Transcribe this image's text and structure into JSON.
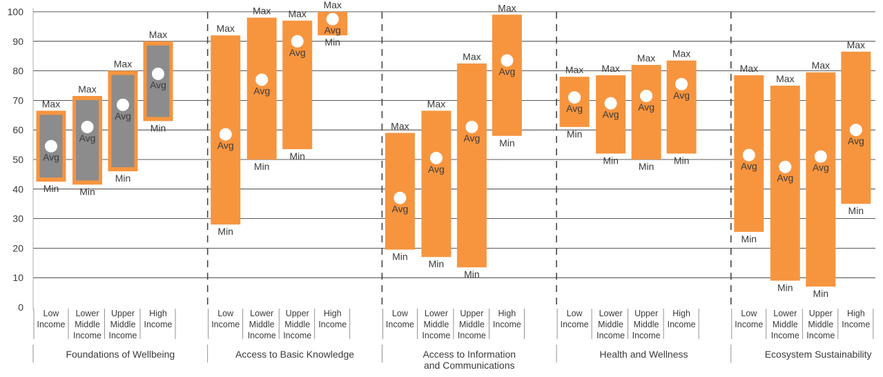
{
  "chart_data": {
    "type": "range-bar",
    "ylim": [
      0,
      100
    ],
    "yticks": [
      0,
      10,
      20,
      30,
      40,
      50,
      60,
      70,
      80,
      90,
      100
    ],
    "grid": true,
    "labels": {
      "max": "Max",
      "avg": "Avg",
      "min": "Min"
    },
    "colors": {
      "bar": "#F7953F",
      "inner": "#8C8C8C",
      "grid": "#222222",
      "text": "#3a3a3a"
    },
    "categories": [
      [
        "Low",
        "Income"
      ],
      [
        "Lower",
        "Middle",
        "Income"
      ],
      [
        "Upper",
        "Middle",
        "Income"
      ],
      [
        "High",
        "Income"
      ]
    ],
    "groups": [
      {
        "label": [
          "Foundations of Wellbeing"
        ],
        "inner": {
          "min": 46,
          "max": 63
        },
        "bars": [
          {
            "min": 42.5,
            "max": 66.5,
            "avg": 54.5
          },
          {
            "min": 41.5,
            "max": 71.5,
            "avg": 61
          },
          {
            "min": 46,
            "max": 80,
            "avg": 68.5
          },
          {
            "min": 63,
            "max": 90,
            "avg": 79
          }
        ]
      },
      {
        "label": [
          "Access to Basic Knowledge"
        ],
        "bars": [
          {
            "min": 28,
            "max": 92,
            "avg": 58.5
          },
          {
            "min": 50,
            "max": 98,
            "avg": 77
          },
          {
            "min": 53.5,
            "max": 97,
            "avg": 90
          },
          {
            "min": 92,
            "max": 100,
            "avg": 97.5
          }
        ]
      },
      {
        "label": [
          "Access to Information",
          "and Communications"
        ],
        "bars": [
          {
            "min": 19.5,
            "max": 59,
            "avg": 37
          },
          {
            "min": 17,
            "max": 66.5,
            "avg": 50.5
          },
          {
            "min": 13.5,
            "max": 82.5,
            "avg": 61
          },
          {
            "min": 58,
            "max": 99,
            "avg": 83.5
          }
        ]
      },
      {
        "label": [
          "Health and Wellness"
        ],
        "bars": [
          {
            "min": 61,
            "max": 78,
            "avg": 71
          },
          {
            "min": 52,
            "max": 78.5,
            "avg": 69
          },
          {
            "min": 50,
            "max": 82,
            "avg": 71.5
          },
          {
            "min": 52,
            "max": 83.5,
            "avg": 75.5
          }
        ]
      },
      {
        "label": [
          "Ecosystem Sustainability"
        ],
        "bars": [
          {
            "min": 25.5,
            "max": 78.5,
            "avg": 51.5
          },
          {
            "min": 9,
            "max": 75,
            "avg": 47.5
          },
          {
            "min": 7,
            "max": 79.5,
            "avg": 51
          },
          {
            "min": 35,
            "max": 86.5,
            "avg": 60
          }
        ]
      }
    ]
  }
}
